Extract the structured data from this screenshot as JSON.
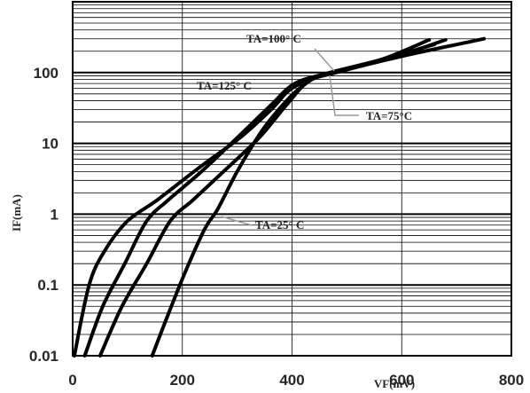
{
  "chart_data": {
    "type": "line",
    "title": "",
    "xlabel": "VF(mV)",
    "ylabel": "IF(mA)",
    "x_scale": "linear",
    "y_scale": "log",
    "xlim": [
      0,
      800
    ],
    "ylim": [
      0.01,
      1000
    ],
    "x_ticks": [
      "0",
      "200",
      "400",
      "600",
      "800"
    ],
    "y_ticks": [
      "0.01",
      "0.1",
      "1",
      "10",
      "100"
    ],
    "grid": true,
    "legend": "none",
    "series": [
      {
        "name": "TA=125° C",
        "x": [
          3,
          30,
          58,
          100,
          155,
          230,
          305,
          362,
          400,
          460,
          560,
          650
        ],
        "y": [
          0.01,
          0.1,
          0.3,
          0.8,
          1.6,
          4.5,
          12,
          30,
          60,
          95,
          150,
          290
        ]
      },
      {
        "name": "TA=100° C",
        "x": [
          22,
          55,
          95,
          135,
          175,
          235,
          300,
          362,
          405,
          470,
          580,
          680
        ],
        "y": [
          0.01,
          0.05,
          0.2,
          0.8,
          1.6,
          4,
          12,
          35,
          70,
          100,
          160,
          290
        ]
      },
      {
        "name": "TA=75°C",
        "x": [
          50,
          90,
          135,
          178,
          220,
          275,
          340,
          390,
          430,
          480,
          600,
          750
        ],
        "y": [
          0.01,
          0.05,
          0.2,
          0.8,
          1.6,
          4,
          12,
          35,
          75,
          100,
          170,
          300
        ]
      },
      {
        "name": "TA=25° C",
        "x": [
          145,
          175,
          205,
          240,
          265,
          300,
          345,
          390,
          425,
          460,
          560,
          660
        ],
        "y": [
          0.01,
          0.04,
          0.15,
          0.6,
          1.2,
          4,
          15,
          40,
          70,
          95,
          150,
          250
        ]
      }
    ],
    "annotations": [
      {
        "text": "TA=100° C",
        "points_to": "TA=100° C"
      },
      {
        "text": "TA=125° C",
        "points_to": "TA=125° C"
      },
      {
        "text": "TA=75°C",
        "points_to": "TA=75°C"
      },
      {
        "text": "TA=25° C",
        "points_to": "TA=25° C"
      }
    ]
  }
}
